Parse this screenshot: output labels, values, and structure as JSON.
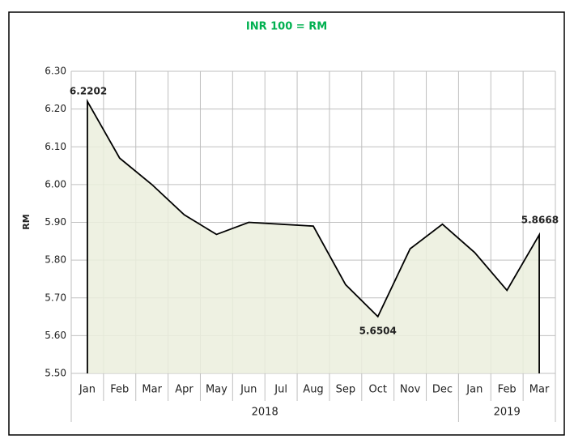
{
  "chart_data": {
    "type": "area-line",
    "subtitle": "INR 100 = RM",
    "y_label": "RM",
    "categories": [
      "Jan",
      "Feb",
      "Mar",
      "Apr",
      "May",
      "Jun",
      "Jul",
      "Aug",
      "Sep",
      "Oct",
      "Nov",
      "Dec",
      "Jan",
      "Feb",
      "Mar"
    ],
    "groups": [
      {
        "label": "2018",
        "span": 12
      },
      {
        "label": "2019",
        "span": 3
      }
    ],
    "values": [
      6.2202,
      6.07,
      6.0,
      5.92,
      5.868,
      5.9,
      5.895,
      5.89,
      5.735,
      5.6504,
      5.83,
      5.895,
      5.82,
      5.72,
      5.8668
    ],
    "value_labels": [
      "6.2202",
      null,
      null,
      null,
      null,
      null,
      null,
      null,
      null,
      "5.6504",
      null,
      null,
      null,
      null,
      "5.8668"
    ],
    "color": "#000000",
    "fill": "#ebeedd",
    "ylim": [
      5.5,
      6.3
    ],
    "yticks": [
      {
        "value": 5.5,
        "label": "5.50"
      },
      {
        "value": 5.6,
        "label": "5.60"
      },
      {
        "value": 5.7,
        "label": "5.70"
      },
      {
        "value": 5.8,
        "label": "5.80"
      },
      {
        "value": 5.9,
        "label": "5.90"
      },
      {
        "value": 6.0,
        "label": "6.00"
      },
      {
        "value": 6.1,
        "label": "6.10"
      },
      {
        "value": 6.2,
        "label": "6.20"
      },
      {
        "value": 6.3,
        "label": "6.30"
      }
    ],
    "grid": true
  }
}
